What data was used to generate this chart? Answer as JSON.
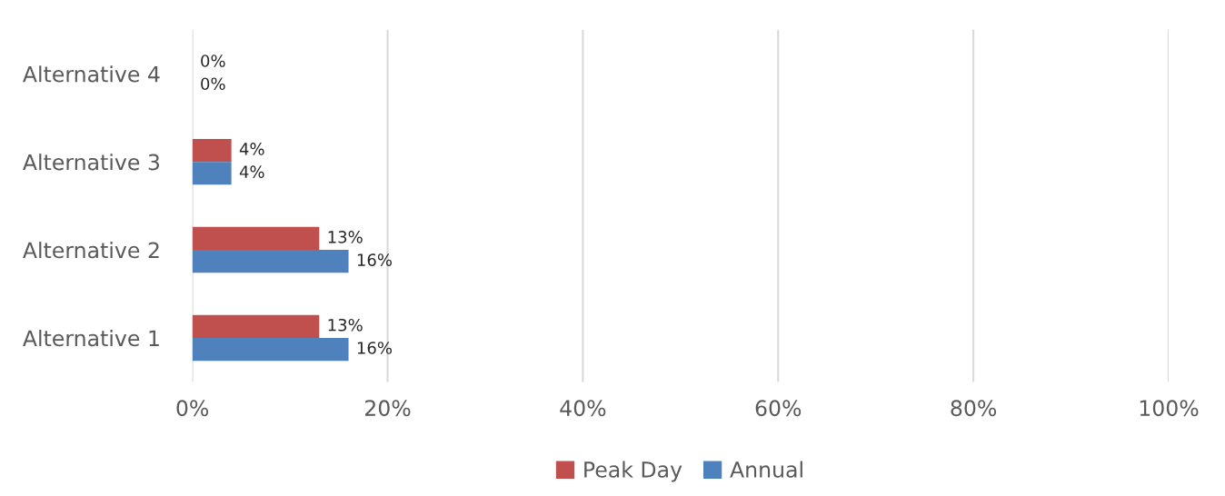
{
  "chart_data": {
    "type": "bar",
    "orientation": "horizontal",
    "categories": [
      "Alternative 4",
      "Alternative 3",
      "Alternative 2",
      "Alternative 1"
    ],
    "series": [
      {
        "name": "Peak Day",
        "color": "#c0504d",
        "values": [
          0,
          4,
          13,
          13
        ],
        "value_labels": [
          "0%",
          "4%",
          "13%",
          "13%"
        ]
      },
      {
        "name": "Annual",
        "color": "#4f81bd",
        "values": [
          0,
          4,
          16,
          16
        ],
        "value_labels": [
          "0%",
          "4%",
          "16%",
          "16%"
        ]
      }
    ],
    "xlim": [
      0,
      100
    ],
    "xticks": [
      {
        "value": 0,
        "label": "0%"
      },
      {
        "value": 20,
        "label": "20%"
      },
      {
        "value": 40,
        "label": "40%"
      },
      {
        "value": 60,
        "label": "60%"
      },
      {
        "value": 80,
        "label": "80%"
      },
      {
        "value": 100,
        "label": "100%"
      }
    ],
    "grid": "x",
    "legend": "bottom"
  }
}
